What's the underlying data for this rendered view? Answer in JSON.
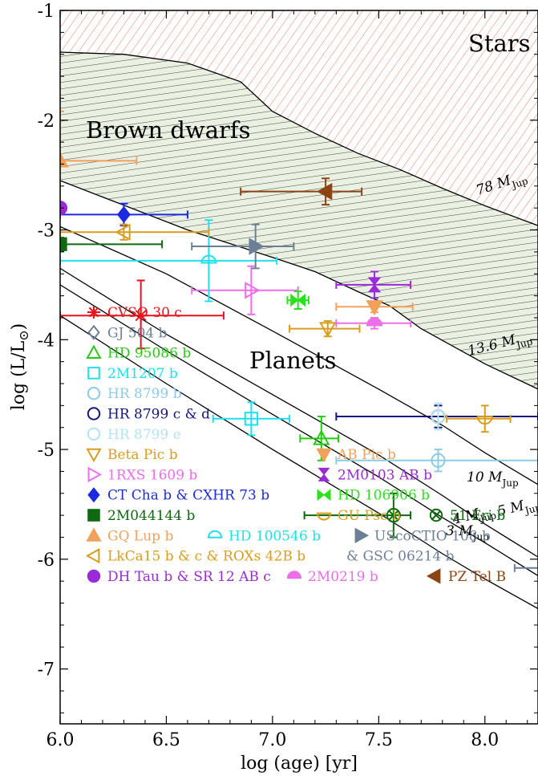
{
  "chart_data": {
    "type": "scatter",
    "title": "",
    "xlabel": "log (age) [yr]",
    "ylabel": "log (L/L",
    "ylabel_symbol": "⊙",
    "ylabel_close": ")",
    "xlim": [
      6.0,
      8.25
    ],
    "ylim": [
      -7.5,
      -1.0
    ],
    "xticks": [
      "6.0",
      "6.5",
      "7.0",
      "7.5",
      "8.0"
    ],
    "yticks": [
      "-1",
      "-2",
      "-3",
      "-4",
      "-5",
      "-6",
      "-7"
    ],
    "regions": {
      "stars": "Stars",
      "brown_dwarfs": "Brown dwarfs",
      "planets": "Planets"
    },
    "mass_labels": [
      {
        "text": "78 M",
        "sub": "Jup"
      },
      {
        "text": "13.6 M",
        "sub": "Jup"
      },
      {
        "text": "10 M",
        "sub": "Jup"
      },
      {
        "text": "5 M",
        "sub": "Jup"
      },
      {
        "text": "4 M",
        "sub": "Jup"
      },
      {
        "text": "3 M",
        "sub": "Jup"
      }
    ],
    "tracks": {
      "m78": [
        [
          6.0,
          -1.38
        ],
        [
          6.3,
          -1.4
        ],
        [
          6.6,
          -1.48
        ],
        [
          6.85,
          -1.65
        ],
        [
          7.0,
          -1.92
        ],
        [
          7.2,
          -2.12
        ],
        [
          7.4,
          -2.3
        ],
        [
          7.6,
          -2.45
        ],
        [
          7.8,
          -2.62
        ],
        [
          8.0,
          -2.78
        ],
        [
          8.25,
          -2.96
        ]
      ],
      "m136": [
        [
          6.0,
          -2.55
        ],
        [
          6.6,
          -3.0
        ],
        [
          7.0,
          -3.25
        ],
        [
          7.2,
          -3.38
        ],
        [
          7.4,
          -3.56
        ],
        [
          7.55,
          -3.69
        ],
        [
          7.7,
          -3.9
        ],
        [
          8.0,
          -4.22
        ],
        [
          8.25,
          -4.45
        ]
      ],
      "m10": [
        [
          6.0,
          -2.97
        ],
        [
          6.5,
          -3.4
        ],
        [
          7.0,
          -3.92
        ],
        [
          7.5,
          -4.45
        ],
        [
          7.8,
          -4.78
        ],
        [
          8.0,
          -5.03
        ],
        [
          8.25,
          -5.32
        ]
      ],
      "m5": [
        [
          6.0,
          -3.35
        ],
        [
          6.5,
          -3.95
        ],
        [
          7.0,
          -4.5
        ],
        [
          7.5,
          -5.05
        ],
        [
          7.8,
          -5.42
        ],
        [
          8.0,
          -5.68
        ],
        [
          8.25,
          -5.98
        ]
      ],
      "m4": [
        [
          6.0,
          -3.5
        ],
        [
          6.5,
          -4.1
        ],
        [
          7.0,
          -4.68
        ],
        [
          7.5,
          -5.25
        ],
        [
          7.8,
          -5.62
        ],
        [
          8.0,
          -5.85
        ],
        [
          8.25,
          -6.15
        ]
      ],
      "m3": [
        [
          6.0,
          -3.78
        ],
        [
          6.5,
          -4.4
        ],
        [
          7.0,
          -5.0
        ],
        [
          7.5,
          -5.58
        ],
        [
          7.8,
          -5.95
        ],
        [
          8.0,
          -6.18
        ],
        [
          8.25,
          -6.45
        ]
      ]
    },
    "series": [
      {
        "name": "CVSO 30 c",
        "color": "#e8131b",
        "marker": "asterisk",
        "x": 6.38,
        "y": -3.78,
        "xerr": [
          0.38,
          0.39
        ],
        "yerr": [
          0.3,
          0.32
        ]
      },
      {
        "name": "GJ 504 b",
        "color": "#6d7f95",
        "marker": "diamond-open",
        "x": 8.3,
        "y": -6.08,
        "xerr": [
          0.16,
          0.0
        ],
        "yerr": [
          0.07,
          0.07
        ]
      },
      {
        "name": "HD 95086 b",
        "color": "#26c914",
        "marker": "triangle-up-open",
        "x": 7.23,
        "y": -4.9,
        "xerr": [
          0.1,
          0.08
        ],
        "yerr": [
          0.2,
          0.2
        ]
      },
      {
        "name": "2M1207 b",
        "color": "#1ee0ec",
        "marker": "square-open",
        "x": 6.9,
        "y": -4.72,
        "xerr": [
          0.18,
          0.18
        ],
        "yerr": [
          0.15,
          0.15
        ]
      },
      {
        "name": "HR 8799 b",
        "color": "#8ccbe5",
        "marker": "circle-open",
        "x": 7.78,
        "y": -5.1,
        "xerr": [
          0.48,
          0.47
        ],
        "yerr": [
          0.1,
          0.1
        ]
      },
      {
        "name": "HR 8799 c & d",
        "color": "#15157c",
        "marker": "circle-open",
        "x": 7.78,
        "y": -4.7,
        "xerr": [
          0.48,
          0.47
        ],
        "yerr": [
          0.1,
          0.1
        ]
      },
      {
        "name": "HR 8799 e",
        "color": "#b2e3ef",
        "marker": "circle-open",
        "x": 7.78,
        "y": -4.7,
        "xerr": [
          0.0,
          0.0
        ],
        "yerr": [
          0.12,
          0.12
        ]
      },
      {
        "name": "Beta Pic b",
        "color": "#d89d1f",
        "marker": "triangle-down-open",
        "x": 7.26,
        "y": -3.9,
        "xerr": [
          0.18,
          0.15
        ],
        "yerr": [
          0.07,
          0.07
        ]
      },
      {
        "name": "AB Pic b",
        "color": "#f2a15a",
        "marker": "triangle-down",
        "x": 7.48,
        "y": -3.7,
        "xerr": [
          0.18,
          0.18
        ],
        "yerr": [
          0.05,
          0.05
        ]
      },
      {
        "name": "1RXS 1609 b",
        "color": "#ea6fe9",
        "marker": "triangle-right-open",
        "x": 6.9,
        "y": -3.55,
        "xerr": [
          0.28,
          0.22
        ],
        "yerr": [
          0.22,
          0.22
        ]
      },
      {
        "name": "2M0103 AB b",
        "color": "#9a2ad6",
        "marker": "bowtie-v",
        "x": 7.48,
        "y": -3.5,
        "xerr": [
          0.18,
          0.17
        ],
        "yerr": [
          0.12,
          0.12
        ]
      },
      {
        "name": "CT Cha b & CXHR 73 b",
        "color": "#1b2ae0",
        "marker": "diamond",
        "x": 6.3,
        "y": -2.86,
        "xerr": [
          0.3,
          0.3
        ],
        "yerr": [
          0.1,
          0.1
        ]
      },
      {
        "name": "HD 106906 b",
        "color": "#2be01b",
        "marker": "bowtie-h",
        "x": 7.12,
        "y": -3.64,
        "xerr": [
          0.05,
          0.05
        ],
        "yerr": [
          0.08,
          0.08
        ]
      },
      {
        "name": "2M044144 b",
        "color": "#0f6a0f",
        "marker": "square",
        "x": 6.0,
        "y": -3.13,
        "xerr": [
          0.0,
          0.48
        ],
        "yerr": [
          0.06,
          0.06
        ]
      },
      {
        "name": "GU Psc b",
        "color": "#d89d1f",
        "marker": "semicircle-down-open",
        "x": 8.0,
        "y": -4.72,
        "xerr": [
          0.18,
          0.12
        ],
        "yerr": [
          0.12,
          0.12
        ]
      },
      {
        "name": "51 Eri b",
        "color": "#0f6a0f",
        "marker": "otimes",
        "x": 7.57,
        "y": -5.6,
        "xerr": [
          0.42,
          0.08
        ],
        "yerr": [
          0.2,
          0.2
        ]
      },
      {
        "name": "GQ Lup b",
        "color": "#f2a15a",
        "marker": "triangle-up",
        "x": 6.0,
        "y": -2.37,
        "xerr": [
          0.0,
          0.36
        ],
        "yerr": [
          0.45,
          0.45
        ]
      },
      {
        "name": "HD 100546 b",
        "color": "#1ee0ec",
        "marker": "semicircle-up-open",
        "x": 6.7,
        "y": -3.28,
        "xerr": [
          0.7,
          0.32
        ],
        "yerr": [
          0.37,
          0.37
        ]
      },
      {
        "name": "UScoCTIO 108 b & GSC 06214 b",
        "color": "#6d7f95",
        "marker": "triangle-right",
        "x": 6.92,
        "y": -3.15,
        "xerr": [
          0.3,
          0.18
        ],
        "yerr": [
          0.2,
          0.2
        ]
      },
      {
        "name": "LkCa15 b & c & ROXs 42B b",
        "color": "#d89d1f",
        "marker": "triangle-left-open",
        "x": 6.3,
        "y": -3.02,
        "xerr": [
          0.3,
          0.4
        ],
        "yerr": [
          0.07,
          0.07
        ]
      },
      {
        "name": "DH Tau b & SR 12 AB c",
        "color": "#9a2ad6",
        "marker": "circle",
        "x": 6.0,
        "y": -2.8,
        "xerr": [
          0.0,
          0.0
        ],
        "yerr": [
          0.0,
          0.0
        ]
      },
      {
        "name": "2M0219 b",
        "color": "#ea6fe9",
        "marker": "semicircle-up",
        "x": 7.48,
        "y": -3.85,
        "xerr": [
          0.18,
          0.17
        ],
        "yerr": [
          0.05,
          0.05
        ]
      },
      {
        "name": "PZ Tel B",
        "color": "#8b4513",
        "marker": "triangle-left",
        "x": 7.25,
        "y": -2.65,
        "xerr": [
          0.4,
          0.17
        ],
        "yerr": [
          0.12,
          0.12
        ]
      }
    ],
    "legend": {
      "left": [
        {
          "label": "CVSO 30 c",
          "color": "#e8131b",
          "marker": "asterisk"
        },
        {
          "label": "GJ 504 b",
          "color": "#6d7f95",
          "marker": "diamond-open"
        },
        {
          "label": "HD 95086 b",
          "color": "#26c914",
          "marker": "triangle-up-open"
        },
        {
          "label": "2M1207 b",
          "color": "#1ee0ec",
          "marker": "square-open"
        },
        {
          "label": "HR 8799 b",
          "color": "#8ccbe5",
          "marker": "circle-open"
        },
        {
          "label": "HR 8799 c & d",
          "color": "#15157c",
          "marker": "circle-open"
        },
        {
          "label": "HR 8799 e",
          "color": "#b2e3ef",
          "marker": "circle-open"
        },
        {
          "label": "Beta Pic b",
          "color": "#d89d1f",
          "marker": "triangle-down-open"
        },
        {
          "label": "1RXS 1609 b",
          "color": "#ea6fe9",
          "marker": "triangle-right-open"
        },
        {
          "label": "CT Cha b & CXHR 73 b",
          "color": "#1b2ae0",
          "marker": "diamond"
        },
        {
          "label": "2M044144 b",
          "color": "#0f6a0f",
          "marker": "square"
        },
        {
          "label": "GQ Lup b",
          "color": "#f2a15a",
          "marker": "triangle-up"
        },
        {
          "label": "LkCa15 b & c & ROXs 42B b",
          "color": "#d89d1f",
          "marker": "triangle-left-open"
        },
        {
          "label": "DH Tau b & SR 12 AB c",
          "color": "#9a2ad6",
          "marker": "circle"
        }
      ],
      "right": [
        {
          "label": "AB Pic b",
          "color": "#f2a15a",
          "marker": "triangle-down"
        },
        {
          "label": "2M0103 AB b",
          "color": "#9a2ad6",
          "marker": "bowtie-v"
        },
        {
          "label": "HD 106906 b",
          "color": "#2be01b",
          "marker": "bowtie-h"
        },
        {
          "label": "GU Psc b",
          "color": "#d89d1f",
          "marker": "semicircle-down-open"
        }
      ],
      "inline": [
        {
          "label": "51 Eri b",
          "color": "#0f6a0f",
          "marker": "otimes"
        },
        {
          "label": "HD 100546 b",
          "color": "#1ee0ec",
          "marker": "semicircle-up-open"
        },
        {
          "label": "UScoCTIO 108 b",
          "color": "#6d7f95",
          "marker": "triangle-right"
        },
        {
          "label": "& GSC 06214 b",
          "color": "#6d7f95",
          "marker": ""
        },
        {
          "label": "2M0219 b",
          "color": "#ea6fe9",
          "marker": "semicircle-up"
        },
        {
          "label": "PZ Tel B",
          "color": "#8b4513",
          "marker": "triangle-left"
        }
      ]
    },
    "colors": {
      "stars_hatch": "#e8907a",
      "bd_hatch": "#333333",
      "bd_fill": "#eaf0e2"
    }
  }
}
